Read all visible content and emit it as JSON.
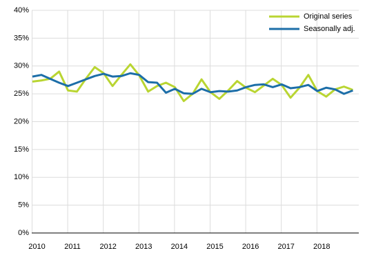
{
  "chart_data": {
    "type": "line",
    "categories": [
      "2010",
      null,
      null,
      null,
      "2011",
      null,
      null,
      null,
      "2012",
      null,
      null,
      null,
      "2013",
      null,
      null,
      null,
      "2014",
      null,
      null,
      null,
      "2015",
      null,
      null,
      null,
      "2016",
      null,
      null,
      null,
      "2017",
      null,
      null,
      null,
      "2018",
      null,
      null,
      null,
      null
    ],
    "series": [
      {
        "name": "Original series",
        "color": "#b9d532",
        "values": [
          27.2,
          27.4,
          27.7,
          29.0,
          25.6,
          25.4,
          27.7,
          29.8,
          28.7,
          26.4,
          28.4,
          30.3,
          28.3,
          25.4,
          26.4,
          27.0,
          26.2,
          23.7,
          25.0,
          27.6,
          25.3,
          24.1,
          25.6,
          27.3,
          26.1,
          25.3,
          26.5,
          27.7,
          26.6,
          24.3,
          26.1,
          28.4,
          25.5,
          24.5,
          25.8,
          26.3,
          25.7
        ]
      },
      {
        "name": "Seasonally adj.",
        "color": "#1c6ea8",
        "values": [
          28.1,
          28.4,
          27.7,
          27.0,
          26.4,
          27.0,
          27.6,
          28.2,
          28.6,
          28.1,
          28.2,
          28.7,
          28.4,
          27.1,
          27.0,
          25.2,
          25.9,
          25.1,
          25.0,
          25.9,
          25.3,
          25.5,
          25.4,
          25.6,
          26.2,
          26.6,
          26.7,
          26.2,
          26.7,
          26.0,
          26.2,
          26.6,
          25.5,
          26.1,
          25.8,
          25.0,
          25.6
        ]
      }
    ],
    "ylim": [
      0,
      40
    ],
    "yticks": [
      {
        "value": 0,
        "label": "0%"
      },
      {
        "value": 5,
        "label": "5%"
      },
      {
        "value": 10,
        "label": "10%"
      },
      {
        "value": 15,
        "label": "15%"
      },
      {
        "value": 20,
        "label": "20%"
      },
      {
        "value": 25,
        "label": "25%"
      },
      {
        "value": 30,
        "label": "30%"
      },
      {
        "value": 35,
        "label": "35%"
      },
      {
        "value": 40,
        "label": "40%"
      }
    ],
    "grid": true,
    "legend": "top-right"
  }
}
